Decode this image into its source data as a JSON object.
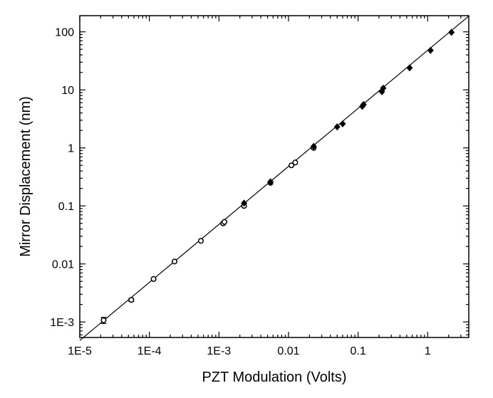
{
  "chart_data": {
    "type": "scatter",
    "title": "",
    "xlabel": "PZT Modulation (Volts)",
    "ylabel": "Mirror Displacement (nm)",
    "xscale": "log",
    "yscale": "log",
    "xlim": [
      1e-05,
      3.9
    ],
    "ylim": [
      0.00054,
      190
    ],
    "grid": false,
    "x_ticks": [
      {
        "v": 1e-05,
        "label": "1E-5"
      },
      {
        "v": 0.0001,
        "label": "1E-4"
      },
      {
        "v": 0.001,
        "label": "1E-3"
      },
      {
        "v": 0.01,
        "label": "0.01"
      },
      {
        "v": 0.1,
        "label": "0.1"
      },
      {
        "v": 1,
        "label": "1"
      }
    ],
    "y_ticks": [
      {
        "v": 0.001,
        "label": "1E-3"
      },
      {
        "v": 0.01,
        "label": "0.01"
      },
      {
        "v": 0.1,
        "label": "0.1"
      },
      {
        "v": 1,
        "label": "1"
      },
      {
        "v": 10,
        "label": "10"
      },
      {
        "v": 100,
        "label": "100"
      }
    ],
    "series": [
      {
        "name": "open circles",
        "marker": "open-circle",
        "points": [
          [
            2.2e-05,
            0.00107,
            0.00013
          ],
          [
            5.5e-05,
            0.0024,
            0.00015
          ],
          [
            0.000115,
            0.0055,
            0
          ],
          [
            0.00023,
            0.011,
            0
          ],
          [
            0.00055,
            0.025,
            0
          ],
          [
            0.00115,
            0.05,
            0
          ],
          [
            0.0012,
            0.053,
            0
          ],
          [
            0.0023,
            0.1,
            0
          ],
          [
            0.0055,
            0.25,
            0
          ],
          [
            0.011,
            0.5,
            0
          ],
          [
            0.0125,
            0.56,
            0
          ],
          [
            0.023,
            1.0,
            0
          ]
        ]
      },
      {
        "name": "filled diamonds",
        "marker": "filled-diamond",
        "points": [
          [
            0.0023,
            0.112
          ],
          [
            0.0055,
            0.26
          ],
          [
            0.023,
            1.06
          ],
          [
            0.05,
            2.3
          ],
          [
            0.06,
            2.6
          ],
          [
            0.115,
            5.2
          ],
          [
            0.12,
            5.6
          ],
          [
            0.22,
            9.3
          ],
          [
            0.23,
            10.7
          ],
          [
            0.55,
            24
          ],
          [
            1.1,
            48
          ],
          [
            2.2,
            98
          ]
        ]
      }
    ],
    "fit_line": {
      "type": "power",
      "coefficient": 48,
      "exponent": 1
    }
  }
}
